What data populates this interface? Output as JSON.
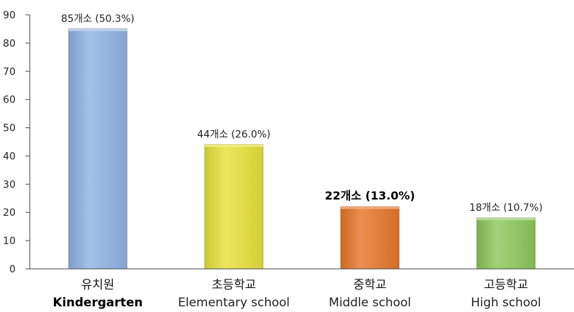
{
  "chart_data": {
    "type": "bar",
    "categories": [
      {
        "ko": "유치원",
        "en": "Kindergarten",
        "en_bold": true
      },
      {
        "ko": "초등학교",
        "en": "Elementary school",
        "en_bold": false
      },
      {
        "ko": "중학교",
        "en": "Middle school",
        "en_bold": false
      },
      {
        "ko": "고등학교",
        "en": "High school",
        "en_bold": false
      }
    ],
    "values": [
      85,
      44,
      22,
      18
    ],
    "data_labels": [
      "85개소 (50.3%)",
      "44개소 (26.0%)",
      "22개소 (13.0%)",
      "18개소 (10.7%)"
    ],
    "data_label_bold": [
      false,
      false,
      true,
      false
    ],
    "colors": [
      "#8fb4e3",
      "#e8e23a",
      "#e8772a",
      "#8cc85a"
    ],
    "ylim": [
      0,
      90
    ],
    "yticks": [
      0,
      10,
      20,
      30,
      40,
      50,
      60,
      70,
      80,
      90
    ],
    "title": "",
    "xlabel": "",
    "ylabel": "",
    "grid": false,
    "legend": "none"
  }
}
